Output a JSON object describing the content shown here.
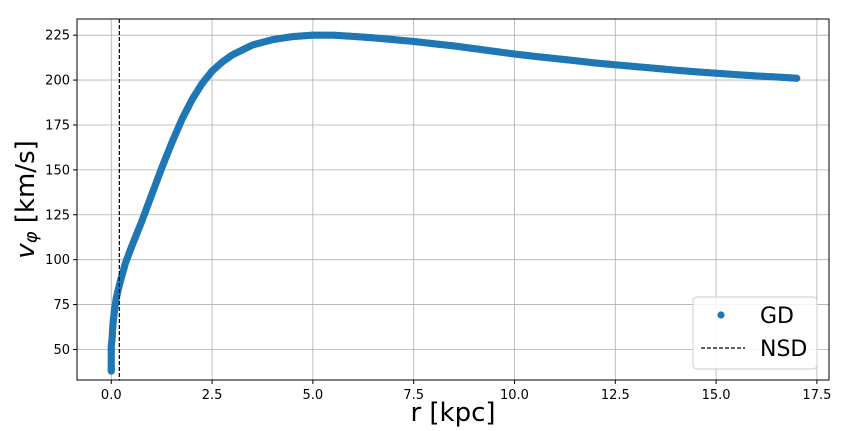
{
  "chart_data": {
    "type": "scatter",
    "xlabel": "r [kpc]",
    "ylabel": "v_φ [km/s]",
    "xlim": [
      -0.85,
      17.8
    ],
    "ylim": [
      33,
      234
    ],
    "x_ticks": [
      0.0,
      2.5,
      5.0,
      7.5,
      10.0,
      12.5,
      15.0,
      17.5
    ],
    "y_ticks": [
      50,
      75,
      100,
      125,
      150,
      175,
      200,
      225
    ],
    "grid": true,
    "legend_position": "lower right",
    "series": [
      {
        "name": "GD",
        "kind": "scatter",
        "color": "#1f77b4",
        "points": [
          [
            0.0,
            38
          ],
          [
            0.0,
            40
          ],
          [
            0.0,
            44
          ],
          [
            0.0,
            48
          ],
          [
            0.0,
            52
          ],
          [
            0.02,
            56
          ],
          [
            0.03,
            60
          ],
          [
            0.05,
            66
          ],
          [
            0.08,
            72
          ],
          [
            0.12,
            78
          ],
          [
            0.18,
            84
          ],
          [
            0.25,
            90
          ],
          [
            0.35,
            98
          ],
          [
            0.5,
            107
          ],
          [
            0.75,
            121
          ],
          [
            1.0,
            136
          ],
          [
            1.25,
            151
          ],
          [
            1.5,
            165
          ],
          [
            1.75,
            178
          ],
          [
            2.0,
            189
          ],
          [
            2.25,
            198
          ],
          [
            2.5,
            205
          ],
          [
            2.75,
            210
          ],
          [
            3.0,
            214
          ],
          [
            3.5,
            219.5
          ],
          [
            4.0,
            222.5
          ],
          [
            4.5,
            224.2
          ],
          [
            5.0,
            225.0
          ],
          [
            5.5,
            225.0
          ],
          [
            6.0,
            224.3
          ],
          [
            6.5,
            223.5
          ],
          [
            7.0,
            222.5
          ],
          [
            7.5,
            221.5
          ],
          [
            8.0,
            220.2
          ],
          [
            8.5,
            219.0
          ],
          [
            9.0,
            217.5
          ],
          [
            9.5,
            216.0
          ],
          [
            10.0,
            214.5
          ],
          [
            10.5,
            213.2
          ],
          [
            11.0,
            212.0
          ],
          [
            11.5,
            210.8
          ],
          [
            12.0,
            209.5
          ],
          [
            12.5,
            208.5
          ],
          [
            13.0,
            207.5
          ],
          [
            13.5,
            206.5
          ],
          [
            14.0,
            205.5
          ],
          [
            14.5,
            204.6
          ],
          [
            15.0,
            203.8
          ],
          [
            15.5,
            203.0
          ],
          [
            16.0,
            202.3
          ],
          [
            16.5,
            201.7
          ],
          [
            17.0,
            201.0
          ]
        ]
      },
      {
        "name": "NSD",
        "kind": "vline",
        "x": 0.2,
        "color": "#000000",
        "style": "dashed"
      }
    ]
  }
}
